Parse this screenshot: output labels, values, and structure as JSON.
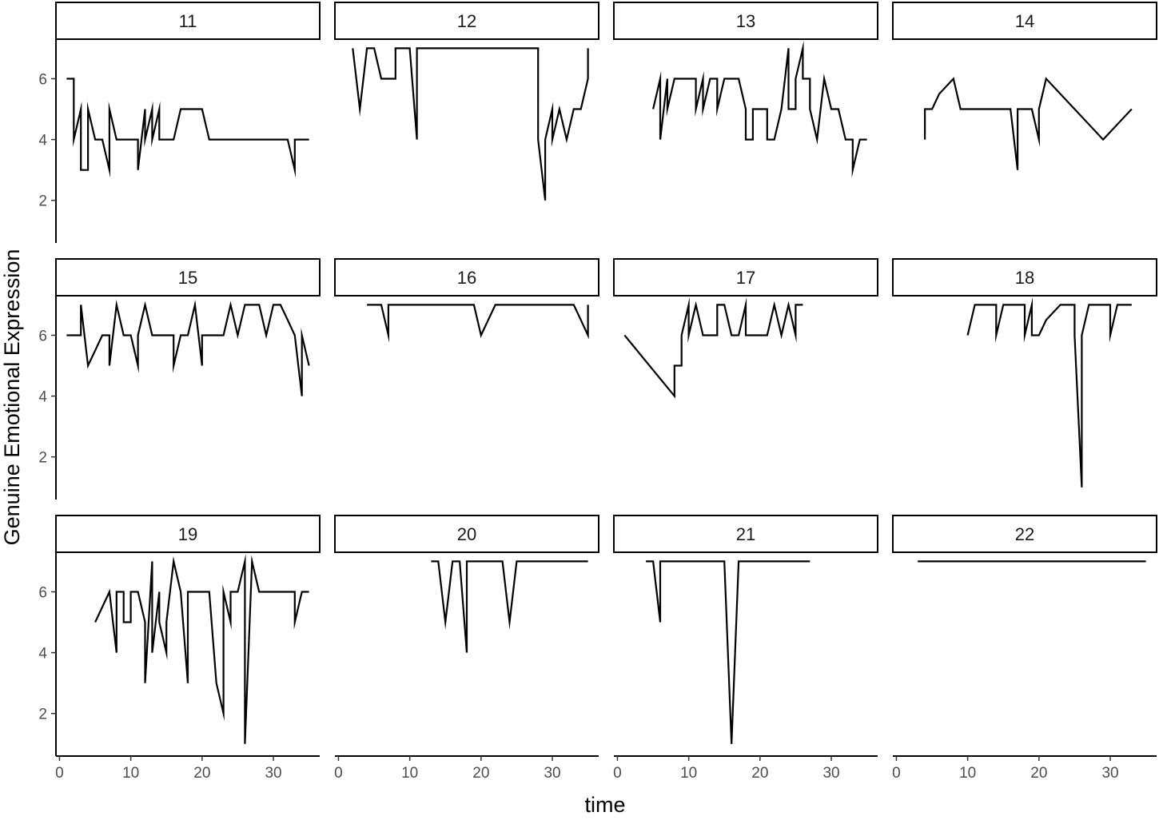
{
  "chart_data": {
    "type": "line",
    "layout": "facet-grid",
    "xlabel": "time",
    "ylabel": "Genuine Emotional Expression",
    "xlim": [
      -0.5,
      36.5
    ],
    "ylim": [
      0.6,
      7.3
    ],
    "x_ticks": [
      0,
      10,
      20,
      30
    ],
    "y_ticks": [
      2,
      4,
      6
    ],
    "line_color": "#000000",
    "grid": false,
    "legend": "none",
    "panels": [
      {
        "label": "11",
        "x": [
          1,
          2,
          2,
          3,
          3,
          4,
          4,
          5,
          6,
          7,
          7,
          8,
          9,
          10,
          11,
          11,
          12,
          12,
          13,
          13,
          14,
          14,
          15,
          16,
          16,
          17,
          18,
          19,
          20,
          20,
          21,
          22,
          23,
          24,
          25,
          26,
          27,
          28,
          29,
          30,
          31,
          32,
          33,
          33,
          34,
          35
        ],
        "y": [
          6,
          6,
          4,
          5,
          3,
          3,
          5,
          4,
          4,
          3,
          5,
          4,
          4,
          4,
          4,
          3,
          5,
          4,
          5,
          4,
          5,
          4,
          4,
          4,
          4,
          5,
          5,
          5,
          5,
          5,
          4,
          4,
          4,
          4,
          4,
          4,
          4,
          4,
          4,
          4,
          4,
          4,
          3,
          4,
          4,
          4
        ]
      },
      {
        "label": "12",
        "x": [
          2,
          3,
          4,
          5,
          6,
          7,
          8,
          8,
          9,
          10,
          11,
          11,
          12,
          13,
          14,
          15,
          16,
          17,
          18,
          19,
          20,
          21,
          22,
          23,
          24,
          25,
          26,
          27,
          28,
          28,
          29,
          29,
          30,
          30,
          31,
          32,
          33,
          34,
          35,
          35
        ],
        "y": [
          7,
          5,
          7,
          7,
          6,
          6,
          6,
          7,
          7,
          7,
          4,
          7,
          7,
          7,
          7,
          7,
          7,
          7,
          7,
          7,
          7,
          7,
          7,
          7,
          7,
          7,
          7,
          7,
          7,
          4,
          2,
          4,
          5,
          4,
          5,
          4,
          5,
          5,
          6,
          7
        ]
      },
      {
        "label": "13",
        "x": [
          5,
          6,
          6,
          7,
          7,
          8,
          9,
          10,
          11,
          11,
          12,
          12,
          13,
          14,
          14,
          15,
          16,
          17,
          18,
          18,
          19,
          19,
          20,
          21,
          21,
          22,
          23,
          24,
          24,
          25,
          25,
          26,
          26,
          27,
          27,
          28,
          29,
          30,
          31,
          32,
          33,
          33,
          34,
          35
        ],
        "y": [
          5,
          6,
          4,
          6,
          5,
          6,
          6,
          6,
          6,
          5,
          6,
          5,
          6,
          6,
          5,
          6,
          6,
          6,
          5,
          4,
          4,
          5,
          5,
          5,
          4,
          4,
          5,
          7,
          5,
          5,
          6,
          7,
          6,
          6,
          5,
          4,
          6,
          5,
          5,
          4,
          4,
          3,
          4,
          4
        ]
      },
      {
        "label": "14",
        "x": [
          4,
          4,
          5,
          6,
          7,
          8,
          9,
          10,
          11,
          12,
          13,
          14,
          15,
          16,
          16,
          17,
          17,
          18,
          19,
          20,
          20,
          21,
          25,
          29,
          33
        ],
        "y": [
          4,
          5,
          5,
          5.5,
          5.75,
          6,
          5,
          5,
          5,
          5,
          5,
          5,
          5,
          5,
          5,
          3,
          5,
          5,
          5,
          4,
          5,
          6,
          5,
          4,
          5
        ]
      },
      {
        "label": "15",
        "x": [
          1,
          2,
          3,
          3,
          4,
          5,
          6,
          7,
          7,
          8,
          9,
          10,
          11,
          11,
          12,
          13,
          14,
          15,
          16,
          16,
          17,
          18,
          19,
          20,
          20,
          21,
          22,
          23,
          24,
          25,
          26,
          27,
          28,
          29,
          30,
          31,
          32,
          33,
          34,
          34,
          35
        ],
        "y": [
          6,
          6,
          6,
          7,
          5,
          5.5,
          6,
          6,
          5,
          7,
          6,
          6,
          5,
          6,
          7,
          6,
          6,
          6,
          6,
          5,
          6,
          6,
          7,
          5,
          6,
          6,
          6,
          6,
          7,
          6,
          7,
          7,
          7,
          6,
          7,
          7,
          6.5,
          6,
          4,
          6,
          5
        ]
      },
      {
        "label": "16",
        "x": [
          4,
          5,
          6,
          7,
          7,
          8,
          9,
          10,
          11,
          12,
          13,
          14,
          15,
          16,
          17,
          18,
          19,
          20,
          21,
          22,
          23,
          24,
          25,
          26,
          27,
          28,
          29,
          30,
          31,
          32,
          33,
          34,
          35,
          35
        ],
        "y": [
          7,
          7,
          7,
          6,
          7,
          7,
          7,
          7,
          7,
          7,
          7,
          7,
          7,
          7,
          7,
          7,
          7,
          6,
          6.5,
          7,
          7,
          7,
          7,
          7,
          7,
          7,
          7,
          7,
          7,
          7,
          7,
          6.5,
          6,
          7
        ]
      },
      {
        "label": "17",
        "x": [
          1,
          8,
          8,
          9,
          9,
          10,
          10,
          11,
          12,
          13,
          14,
          14,
          15,
          16,
          17,
          18,
          18,
          19,
          20,
          21,
          22,
          23,
          24,
          25,
          25,
          26
        ],
        "y": [
          6,
          4,
          5,
          5,
          6,
          7,
          6,
          7,
          6,
          6,
          6,
          7,
          7,
          6,
          6,
          7,
          6,
          6,
          6,
          6,
          7,
          6,
          7,
          6,
          7,
          7
        ]
      },
      {
        "label": "18",
        "x": [
          10,
          11,
          12,
          13,
          14,
          14,
          15,
          16,
          17,
          18,
          18,
          19,
          19,
          20,
          21,
          23,
          24,
          25,
          25,
          26,
          26,
          27,
          28,
          29,
          30,
          30,
          31,
          32,
          33
        ],
        "y": [
          6,
          7,
          7,
          7,
          7,
          6,
          7,
          7,
          7,
          7,
          6,
          7,
          6,
          6,
          6.5,
          7,
          7,
          7,
          6,
          1,
          6,
          7,
          7,
          7,
          7,
          6,
          7,
          7,
          7
        ]
      },
      {
        "label": "19",
        "x": [
          5,
          6,
          7,
          8,
          8,
          9,
          9,
          10,
          10,
          11,
          12,
          12,
          13,
          13,
          14,
          14,
          15,
          15,
          16,
          17,
          17,
          18,
          18,
          19,
          20,
          21,
          22,
          23,
          23,
          24,
          24,
          25,
          26,
          26,
          27,
          28,
          29,
          30,
          31,
          32,
          33,
          33,
          34,
          35
        ],
        "y": [
          5,
          5.5,
          6,
          4,
          6,
          6,
          5,
          5,
          6,
          6,
          5,
          3,
          7,
          4,
          6,
          5,
          4,
          5,
          7,
          6,
          6,
          3,
          6,
          6,
          6,
          6,
          3,
          2,
          6,
          5,
          6,
          6,
          7,
          1,
          7,
          6,
          6,
          6,
          6,
          6,
          6,
          5,
          6,
          6
        ]
      },
      {
        "label": "20",
        "x": [
          13,
          14,
          15,
          16,
          17,
          18,
          18,
          19,
          20,
          21,
          22,
          23,
          24,
          25,
          26,
          27,
          28,
          29,
          30,
          31,
          32,
          33,
          34,
          35
        ],
        "y": [
          7,
          7,
          5,
          7,
          7,
          4,
          7,
          7,
          7,
          7,
          7,
          7,
          5,
          7,
          7,
          7,
          7,
          7,
          7,
          7,
          7,
          7,
          7,
          7
        ]
      },
      {
        "label": "21",
        "x": [
          4,
          5,
          6,
          6,
          7,
          8,
          9,
          10,
          11,
          12,
          13,
          14,
          15,
          16,
          17,
          18,
          19,
          20,
          21,
          22,
          23,
          24,
          25,
          26,
          27
        ],
        "y": [
          7,
          7,
          5,
          7,
          7,
          7,
          7,
          7,
          7,
          7,
          7,
          7,
          7,
          1,
          7,
          7,
          7,
          7,
          7,
          7,
          7,
          7,
          7,
          7,
          7
        ]
      },
      {
        "label": "22",
        "x": [
          3,
          35
        ],
        "y": [
          7,
          7
        ]
      }
    ]
  }
}
